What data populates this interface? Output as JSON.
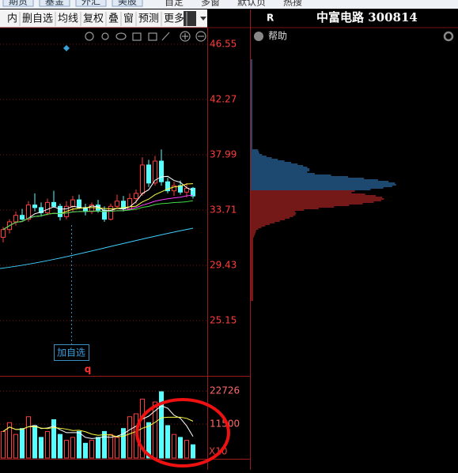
{
  "top_tabs": [
    "期货",
    "基金",
    "外汇",
    "美股"
  ],
  "top_menu": [
    "自定",
    "多窗",
    "默认页",
    "热搜"
  ],
  "toolbar": [
    "内",
    "删自选",
    "均线",
    "复权",
    "叠",
    "窗",
    "预测",
    "更多"
  ],
  "stock": {
    "market": "R",
    "title": "中富电路 300814"
  },
  "help": "帮助",
  "price_chart": {
    "type": "candlestick",
    "ylim": [
      21.97,
      47.53
    ],
    "yticks": [
      46.55,
      42.27,
      37.99,
      33.71,
      29.43,
      25.15
    ],
    "tag": "加自选",
    "marker": "q",
    "candles": [
      {
        "open": 31.6,
        "high": 32.4,
        "low": 31.2,
        "close": 32.2
      },
      {
        "open": 32.2,
        "high": 33.0,
        "low": 31.9,
        "close": 32.8
      },
      {
        "open": 32.8,
        "high": 33.6,
        "low": 32.5,
        "close": 33.3
      },
      {
        "open": 33.3,
        "high": 33.8,
        "low": 32.9,
        "close": 33.0
      },
      {
        "open": 33.0,
        "high": 34.4,
        "low": 32.8,
        "close": 34.1
      },
      {
        "open": 34.1,
        "high": 35.0,
        "low": 33.6,
        "close": 33.9
      },
      {
        "open": 33.9,
        "high": 34.3,
        "low": 33.2,
        "close": 33.5
      },
      {
        "open": 33.5,
        "high": 34.6,
        "low": 33.3,
        "close": 34.3
      },
      {
        "open": 34.3,
        "high": 35.2,
        "low": 33.9,
        "close": 34.0
      },
      {
        "open": 34.0,
        "high": 34.2,
        "low": 32.9,
        "close": 33.2
      },
      {
        "open": 33.2,
        "high": 34.4,
        "low": 33.0,
        "close": 34.0
      },
      {
        "open": 34.0,
        "high": 34.8,
        "low": 33.6,
        "close": 34.5
      },
      {
        "open": 34.5,
        "high": 34.9,
        "low": 33.8,
        "close": 33.9
      },
      {
        "open": 33.9,
        "high": 34.2,
        "low": 33.3,
        "close": 33.6
      },
      {
        "open": 33.6,
        "high": 34.3,
        "low": 33.4,
        "close": 34.1
      },
      {
        "open": 34.1,
        "high": 34.5,
        "low": 33.5,
        "close": 33.7
      },
      {
        "open": 33.7,
        "high": 34.0,
        "low": 32.8,
        "close": 33.0
      },
      {
        "open": 33.0,
        "high": 34.2,
        "low": 32.9,
        "close": 34.0
      },
      {
        "open": 34.0,
        "high": 34.9,
        "low": 33.8,
        "close": 34.4
      },
      {
        "open": 34.4,
        "high": 34.8,
        "low": 33.6,
        "close": 33.8
      },
      {
        "open": 33.8,
        "high": 35.0,
        "low": 33.7,
        "close": 34.6
      },
      {
        "open": 34.6,
        "high": 35.3,
        "low": 34.2,
        "close": 35.0
      },
      {
        "open": 35.0,
        "high": 37.8,
        "low": 34.8,
        "close": 37.2
      },
      {
        "open": 37.2,
        "high": 37.6,
        "low": 35.5,
        "close": 35.8
      },
      {
        "open": 35.8,
        "high": 37.9,
        "low": 35.6,
        "close": 37.5
      },
      {
        "open": 37.5,
        "high": 38.4,
        "low": 35.6,
        "close": 35.9
      },
      {
        "open": 35.9,
        "high": 36.2,
        "low": 35.0,
        "close": 35.2
      },
      {
        "open": 35.2,
        "high": 35.9,
        "low": 34.8,
        "close": 35.6
      },
      {
        "open": 35.6,
        "high": 36.0,
        "low": 34.9,
        "close": 35.1
      },
      {
        "open": 35.1,
        "high": 35.8,
        "low": 34.7,
        "close": 35.4
      },
      {
        "open": 35.4,
        "high": 35.5,
        "low": 34.6,
        "close": 34.8
      }
    ]
  },
  "volume_chart": {
    "type": "bar",
    "ylim": [
      0,
      26800
    ],
    "yticks": [
      22726,
      11500
    ],
    "unit": "X10",
    "values": [
      9000,
      12000,
      8000,
      10000,
      14000,
      11000,
      7000,
      9000,
      13000,
      8000,
      6000,
      7000,
      9000,
      5000,
      6000,
      7000,
      9000,
      8000,
      7000,
      10000,
      14000,
      15000,
      20000,
      12000,
      19000,
      22500,
      11000,
      8000,
      7000,
      6000,
      4500
    ]
  }
}
